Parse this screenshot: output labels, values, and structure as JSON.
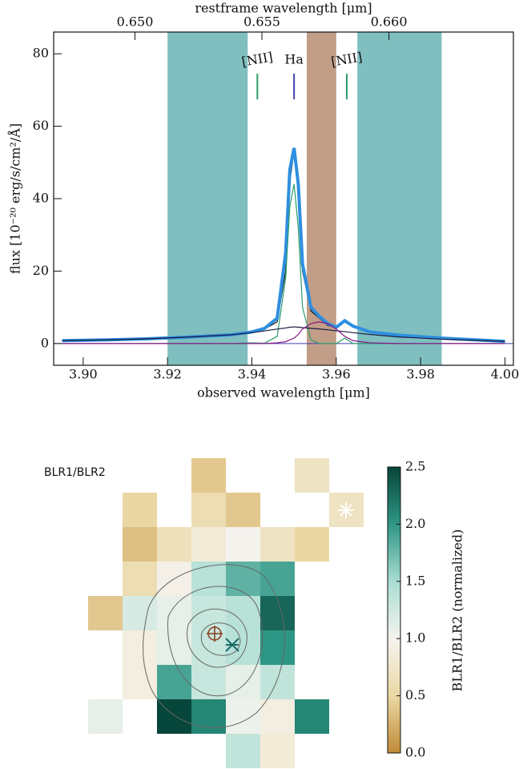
{
  "chart_data": [
    {
      "type": "line",
      "xlabel": "observed wavelength [μm]",
      "x2label": "restframe wavelength [μm]",
      "ylabel": "flux [10⁻²⁰ erg/s/cm²/Å]",
      "xlim": [
        3.893,
        4.002
      ],
      "xticks": [
        {
          "value": 3.9,
          "label": "3.90"
        },
        3.92,
        3.94,
        3.96,
        3.98,
        {
          "value": 4.0,
          "label": "4.00"
        }
      ],
      "x2lim": [
        0.6468,
        0.6649
      ],
      "x2ticks": [
        {
          "value": 0.65,
          "label": "0.650"
        },
        0.655,
        {
          "value": 0.66,
          "label": "0.660"
        }
      ],
      "ylim": [
        -6,
        86
      ],
      "yticks": [
        0,
        20,
        40,
        60,
        80
      ],
      "bands": [
        {
          "xmin": 3.92,
          "xmax": 3.939,
          "color": "#7fbfbf"
        },
        {
          "xmin": 3.953,
          "xmax": 3.96,
          "color": "#c29e88"
        },
        {
          "xmin": 3.965,
          "xmax": 3.985,
          "color": "#7fbfbf"
        }
      ],
      "line_markers": [
        {
          "label": "[NII]",
          "x": 3.9413,
          "color": "#2a9d6a"
        },
        {
          "label": "Ha",
          "x": 3.95,
          "color": "#4040b0"
        },
        {
          "label": "[NII]",
          "x": 3.9625,
          "color": "#2a9d6a"
        }
      ],
      "x": [
        3.895,
        3.905,
        3.915,
        3.925,
        3.935,
        3.94,
        3.943,
        3.946,
        3.948,
        3.949,
        3.95,
        3.951,
        3.952,
        3.954,
        3.956,
        3.958,
        3.96,
        3.962,
        3.964,
        3.968,
        3.975,
        3.985,
        3.995,
        4.0
      ],
      "series": [
        {
          "color": "#111111",
          "values": [
            1,
            1,
            1.5,
            2,
            2.5,
            3,
            4,
            6,
            20,
            45,
            53,
            42,
            20,
            9,
            7,
            5,
            4.5,
            6,
            5,
            3,
            2.5,
            1.5,
            1,
            0.5
          ]
        },
        {
          "color": "#2e8fe0",
          "width": 4,
          "values": [
            0.8,
            1,
            1.3,
            1.8,
            2.4,
            3.2,
            4.2,
            7,
            25,
            48,
            54,
            44,
            22,
            10,
            7.5,
            5.5,
            4.5,
            6.3,
            4.8,
            3.2,
            2.3,
            1.5,
            0.9,
            0.6
          ]
        },
        {
          "color": "#2a9d6a",
          "values": [
            0,
            0,
            0,
            0,
            0,
            0.2,
            0.1,
            2,
            18,
            38,
            44,
            32,
            10,
            1,
            0,
            0,
            0,
            1.5,
            0,
            0,
            0,
            0,
            0,
            0
          ]
        },
        {
          "color": "#1a1a40",
          "values": [
            0.8,
            1,
            1.3,
            1.8,
            2.4,
            3,
            3.5,
            4,
            4.3,
            4.5,
            4.6,
            4.5,
            4.4,
            4.2,
            4,
            3.8,
            3.5,
            3.3,
            3,
            2.5,
            1.8,
            1.2,
            0.8,
            0.6
          ]
        },
        {
          "color": "#8a1a8a",
          "values": [
            0,
            0,
            0,
            0,
            0,
            0,
            0,
            0.2,
            0.5,
            1,
            1.5,
            2.5,
            4,
            5.5,
            6,
            5.5,
            4,
            2,
            0.8,
            0.2,
            0,
            0,
            0,
            0
          ]
        }
      ]
    },
    {
      "type": "heatmap",
      "title": "BLR1/BLR2",
      "colorbar_label": "BLR1/BLR2 (normalized)",
      "clim": [
        0,
        2.5
      ],
      "cticks": [
        {
          "value": 0,
          "label": "0.0"
        },
        0.5,
        {
          "value": 1,
          "label": "1.0"
        },
        1.5,
        {
          "value": 2,
          "label": "2.0"
        },
        2.5
      ],
      "colormap": [
        "#c08a36",
        "#ead8a4",
        "#f5f3ee",
        "#a9ddd2",
        "#2e9684",
        "#07463a"
      ],
      "z": [
        [
          null,
          null,
          null,
          0.4,
          null,
          null,
          0.7,
          null
        ],
        [
          null,
          0.5,
          null,
          0.6,
          0.4,
          null,
          null,
          0.7
        ],
        [
          null,
          0.35,
          0.65,
          0.85,
          1.0,
          0.7,
          0.5,
          null
        ],
        [
          null,
          0.6,
          0.95,
          1.4,
          1.8,
          1.9,
          null,
          null
        ],
        [
          0.4,
          1.2,
          1.1,
          1.3,
          1.4,
          2.3,
          null,
          null
        ],
        [
          null,
          0.9,
          1.1,
          1.3,
          1.4,
          2.0,
          null,
          null
        ],
        [
          null,
          0.9,
          1.9,
          1.3,
          1.1,
          1.35,
          null,
          null
        ],
        [
          1.1,
          null,
          2.5,
          2.1,
          1.05,
          0.9,
          2.1,
          null
        ],
        [
          null,
          null,
          null,
          null,
          1.35,
          0.85,
          null,
          null
        ]
      ]
    }
  ]
}
